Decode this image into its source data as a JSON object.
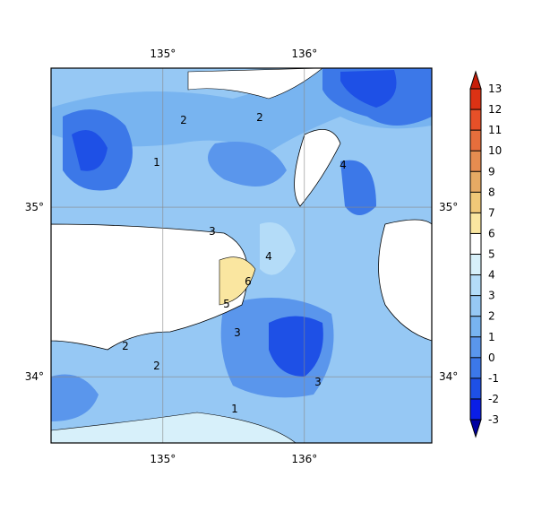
{
  "map": {
    "xlim": [
      134.21,
      136.9
    ],
    "ylim": [
      33.61,
      35.82
    ],
    "xticks": [
      {
        "value": 135,
        "label": "135°"
      },
      {
        "value": 136,
        "label": "136°"
      }
    ],
    "yticks": [
      {
        "value": 35,
        "label": "35°"
      },
      {
        "value": 34,
        "label": "34°"
      }
    ],
    "grid": true,
    "contour_labels": [
      "2",
      "1",
      "2",
      "4",
      "3",
      "4",
      "6",
      "5",
      "3",
      "2",
      "1",
      "2",
      "3"
    ],
    "colorbar": {
      "ticks": [
        -3,
        -2,
        -1,
        0,
        1,
        2,
        3,
        4,
        5,
        6,
        7,
        8,
        9,
        10,
        11,
        12,
        13
      ],
      "colors": [
        "#0a1ee6",
        "#1e50e6",
        "#3c78e8",
        "#5a96ec",
        "#78b4f0",
        "#96c8f4",
        "#b4dcf8",
        "#d7f0fa",
        "#ffffff",
        "#fae6a0",
        "#f0c878",
        "#e6aa64",
        "#e68c50",
        "#e66e3c",
        "#e65028",
        "#dc3214"
      ],
      "extend_low_color": "#0000a0",
      "extend_high_color": "#c81e0a"
    }
  }
}
